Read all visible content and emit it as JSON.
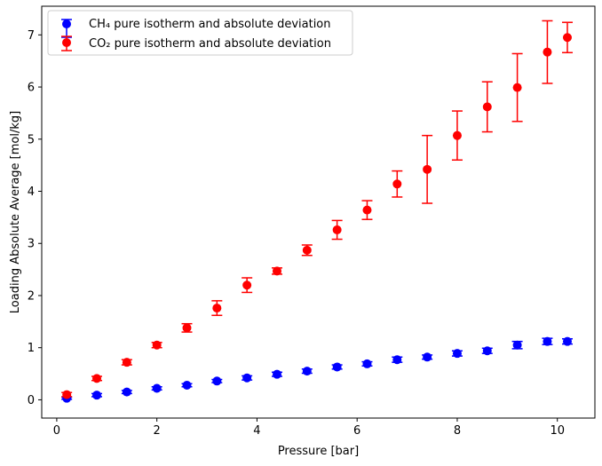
{
  "chart_data": {
    "type": "scatter",
    "title": "",
    "xlabel": "Pressure [bar]",
    "ylabel": "Loading Absolute Average [mol/kg]",
    "xlim": [
      -0.3,
      10.75
    ],
    "ylim": [
      -0.35,
      7.55
    ],
    "xticks": [
      0,
      2,
      4,
      6,
      8,
      10
    ],
    "yticks": [
      0,
      1,
      2,
      3,
      4,
      5,
      6,
      7
    ],
    "grid": false,
    "legend_position": "top-left",
    "series": [
      {
        "name": "CH₄ pure isotherm and absolute deviation",
        "color": "#0000ff",
        "x": [
          0.2,
          0.8,
          1.4,
          2.0,
          2.6,
          3.2,
          3.8,
          4.4,
          5.0,
          5.6,
          6.2,
          6.8,
          7.4,
          8.0,
          8.6,
          9.2,
          9.8,
          10.2
        ],
        "y": [
          0.03,
          0.09,
          0.15,
          0.22,
          0.28,
          0.36,
          0.42,
          0.49,
          0.55,
          0.63,
          0.69,
          0.77,
          0.82,
          0.89,
          0.94,
          1.05,
          1.12,
          1.12
        ],
        "err": [
          0.02,
          0.03,
          0.03,
          0.03,
          0.03,
          0.03,
          0.04,
          0.04,
          0.04,
          0.04,
          0.04,
          0.05,
          0.04,
          0.05,
          0.05,
          0.07,
          0.06,
          0.05
        ]
      },
      {
        "name": "CO₂ pure isotherm and absolute deviation",
        "color": "#ff0000",
        "x": [
          0.2,
          0.8,
          1.4,
          2.0,
          2.6,
          3.2,
          3.8,
          4.4,
          5.0,
          5.6,
          6.2,
          6.8,
          7.4,
          8.0,
          8.6,
          9.2,
          9.8,
          10.2
        ],
        "y": [
          0.1,
          0.41,
          0.72,
          1.05,
          1.38,
          1.76,
          2.2,
          2.47,
          2.87,
          3.26,
          3.64,
          4.14,
          4.42,
          5.07,
          5.62,
          5.99,
          6.67,
          6.95
        ],
        "err": [
          0.04,
          0.04,
          0.05,
          0.05,
          0.08,
          0.14,
          0.14,
          0.06,
          0.1,
          0.18,
          0.18,
          0.25,
          0.65,
          0.47,
          0.48,
          0.65,
          0.6,
          0.29
        ]
      }
    ]
  }
}
